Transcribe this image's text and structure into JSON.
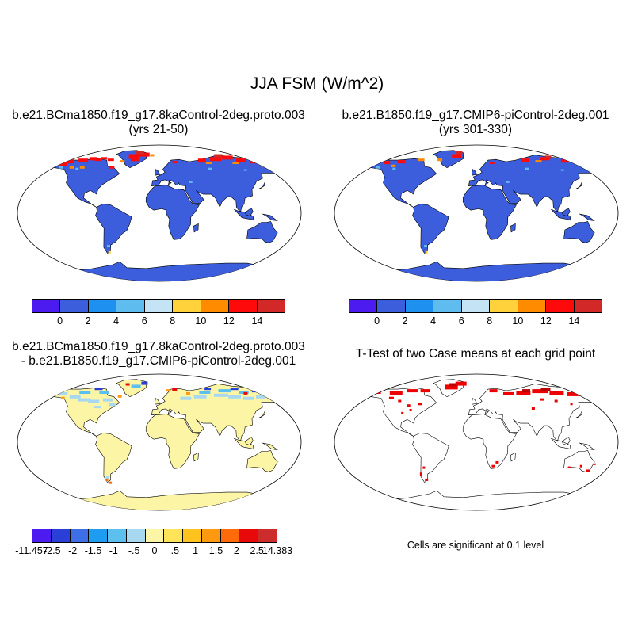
{
  "figure": {
    "title": "JJA FSM (W/m^2)"
  },
  "panels": {
    "top_left": {
      "title_line1": "b.e21.BCma1850.f19_g17.8kaControl-2deg.proto.003",
      "title_line2": "(yrs 21-50)"
    },
    "top_right": {
      "title_line1": "b.e21.B1850.f19_g17.CMIP6-piControl-2deg.001",
      "title_line2": "(yrs 301-330)"
    },
    "bottom_left": {
      "title_line1": "b.e21.BCma1850.f19_g17.8kaControl-2deg.proto.003",
      "title_line2": "- b.e21.B1850.f19_g17.CMIP6-piControl-2deg.001"
    },
    "bottom_right": {
      "title": "T-Test of two Case means at each grid point",
      "note": "Cells are significant at 0.1 level"
    }
  },
  "colorbars": {
    "case": {
      "colors": [
        "#4b1bf0",
        "#3c5ddc",
        "#1e90f0",
        "#5fbcee",
        "#c4e4f6",
        "#ffd23c",
        "#ff8c00",
        "#ff0a0a",
        "#d22828"
      ],
      "labels": [
        "0",
        "2",
        "4",
        "6",
        "8",
        "10",
        "12",
        "14"
      ]
    },
    "diff": {
      "colors": [
        "#4b1bf0",
        "#2a3fd8",
        "#3f6fe6",
        "#1e9cf0",
        "#5cc0ee",
        "#a8d8f0",
        "#fdf5a6",
        "#ffe45a",
        "#ffc21e",
        "#ff9a10",
        "#ff6a0a",
        "#e80a0a",
        "#cc2c2c"
      ],
      "labels": [
        "-11.457",
        "-2.5",
        "-2",
        "-1.5",
        "-1",
        "-.5",
        "0",
        ".5",
        "1",
        "1.5",
        "2",
        "2.5",
        "14.383"
      ]
    }
  },
  "map_colors": {
    "land_case": "#3c5ddc",
    "land_diff": "#fdf5a6",
    "signif": "#ee0000",
    "hot_warm": "#ff0a0a",
    "hot_orange": "#ff8c00",
    "hot_dark": "#d22828",
    "light_blue": "#a8d8f0"
  }
}
